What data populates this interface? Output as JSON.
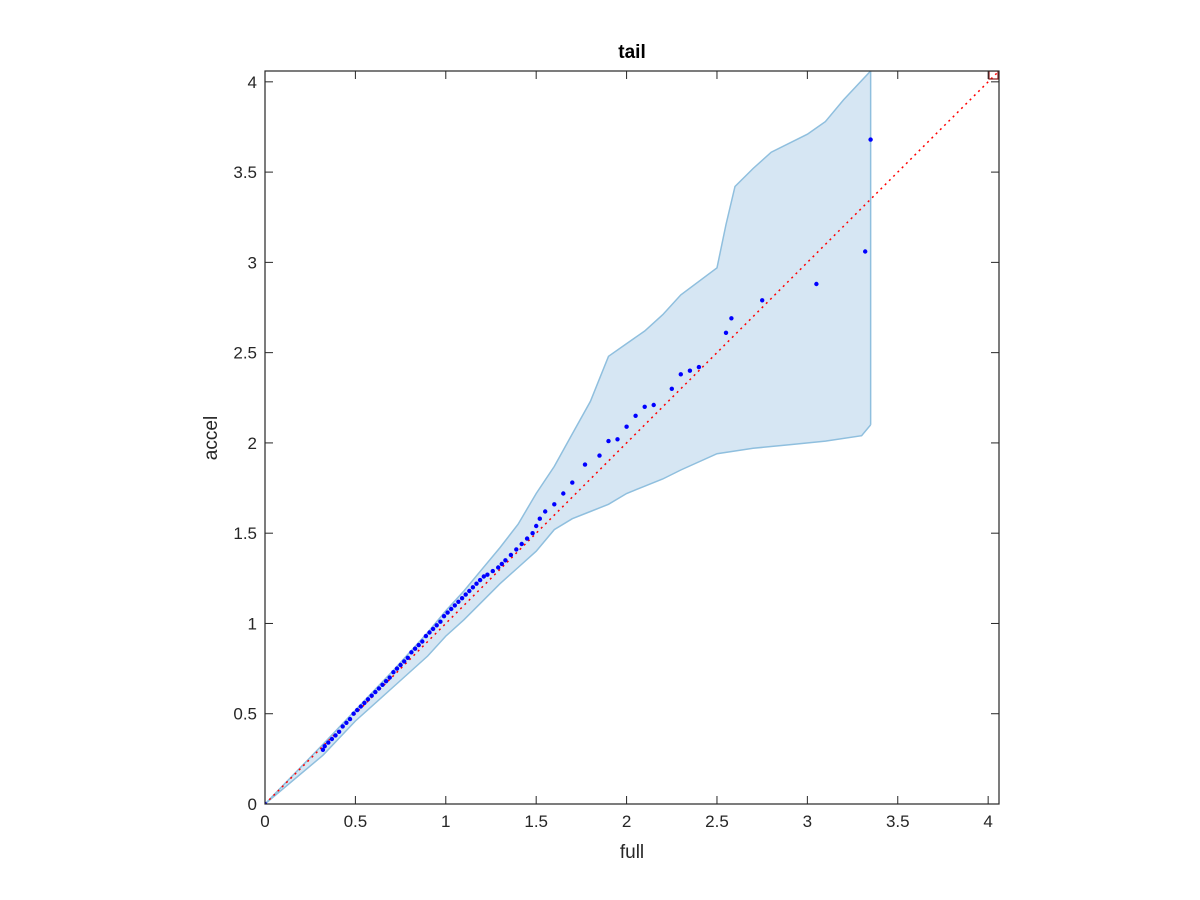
{
  "chart_data": {
    "type": "scatter",
    "title": "tail",
    "xlabel": "full",
    "ylabel": "accel",
    "xlim": [
      0,
      4.06
    ],
    "ylim": [
      0,
      4.06
    ],
    "xticks": [
      0,
      0.5,
      1,
      1.5,
      2,
      2.5,
      3,
      3.5,
      4
    ],
    "yticks": [
      0,
      0.5,
      1,
      1.5,
      2,
      2.5,
      3,
      3.5,
      4
    ],
    "xtick_labels": [
      "0",
      "0.5",
      "1",
      "1.5",
      "2",
      "2.5",
      "3",
      "3.5",
      "4"
    ],
    "ytick_labels": [
      "0",
      "0.5",
      "1",
      "1.5",
      "2",
      "2.5",
      "3",
      "3.5",
      "4"
    ],
    "grid": false,
    "reference_line": {
      "style": "dotted",
      "color": "#ff0000",
      "x": [
        0,
        4.06
      ],
      "y": [
        0,
        4.06
      ]
    },
    "band": {
      "color": "#d6e6f3",
      "edge_color": "#8fbfde",
      "upper": [
        [
          0,
          0
        ],
        [
          0.32,
          0.33
        ],
        [
          0.5,
          0.52
        ],
        [
          0.7,
          0.73
        ],
        [
          0.9,
          0.95
        ],
        [
          1.0,
          1.07
        ],
        [
          1.1,
          1.18
        ],
        [
          1.2,
          1.3
        ],
        [
          1.3,
          1.42
        ],
        [
          1.4,
          1.55
        ],
        [
          1.5,
          1.72
        ],
        [
          1.6,
          1.87
        ],
        [
          1.7,
          2.05
        ],
        [
          1.8,
          2.23
        ],
        [
          1.9,
          2.48
        ],
        [
          2.0,
          2.55
        ],
        [
          2.1,
          2.62
        ],
        [
          2.2,
          2.71
        ],
        [
          2.3,
          2.82
        ],
        [
          2.5,
          2.97
        ],
        [
          2.55,
          3.21
        ],
        [
          2.6,
          3.42
        ],
        [
          2.7,
          3.52
        ],
        [
          2.8,
          3.61
        ],
        [
          3.0,
          3.71
        ],
        [
          3.1,
          3.78
        ],
        [
          3.2,
          3.9
        ],
        [
          3.35,
          4.06
        ]
      ],
      "lower": [
        [
          0,
          0
        ],
        [
          0.32,
          0.27
        ],
        [
          0.5,
          0.46
        ],
        [
          0.7,
          0.64
        ],
        [
          0.9,
          0.82
        ],
        [
          1.0,
          0.93
        ],
        [
          1.1,
          1.02
        ],
        [
          1.2,
          1.12
        ],
        [
          1.3,
          1.22
        ],
        [
          1.4,
          1.31
        ],
        [
          1.5,
          1.4
        ],
        [
          1.6,
          1.52
        ],
        [
          1.7,
          1.58
        ],
        [
          1.8,
          1.62
        ],
        [
          1.9,
          1.66
        ],
        [
          2.0,
          1.72
        ],
        [
          2.1,
          1.76
        ],
        [
          2.2,
          1.8
        ],
        [
          2.3,
          1.85
        ],
        [
          2.5,
          1.94
        ],
        [
          2.7,
          1.97
        ],
        [
          2.9,
          1.99
        ],
        [
          3.1,
          2.01
        ],
        [
          3.3,
          2.04
        ],
        [
          3.35,
          2.1
        ]
      ]
    },
    "series": [
      {
        "color": "#0000ff",
        "x": [
          0,
          0.32,
          0.33,
          0.35,
          0.37,
          0.39,
          0.41,
          0.43,
          0.45,
          0.47,
          0.49,
          0.51,
          0.53,
          0.55,
          0.57,
          0.59,
          0.61,
          0.63,
          0.65,
          0.67,
          0.69,
          0.71,
          0.73,
          0.75,
          0.77,
          0.79,
          0.81,
          0.83,
          0.85,
          0.87,
          0.89,
          0.91,
          0.93,
          0.95,
          0.97,
          0.99,
          1.01,
          1.03,
          1.05,
          1.07,
          1.09,
          1.11,
          1.13,
          1.15,
          1.17,
          1.19,
          1.21,
          1.23,
          1.26,
          1.29,
          1.31,
          1.33,
          1.36,
          1.39,
          1.42,
          1.45,
          1.48,
          1.5,
          1.52,
          1.55,
          1.6,
          1.65,
          1.7,
          1.77,
          1.85,
          1.9,
          1.95,
          2.0,
          2.05,
          2.1,
          2.15,
          2.25,
          2.3,
          2.35,
          2.4,
          2.55,
          2.58,
          2.75,
          3.05,
          3.32,
          3.35
        ],
        "y": [
          0,
          0.3,
          0.32,
          0.34,
          0.36,
          0.38,
          0.4,
          0.43,
          0.45,
          0.47,
          0.5,
          0.52,
          0.54,
          0.56,
          0.58,
          0.6,
          0.62,
          0.64,
          0.66,
          0.68,
          0.7,
          0.73,
          0.75,
          0.77,
          0.79,
          0.81,
          0.84,
          0.86,
          0.88,
          0.9,
          0.93,
          0.95,
          0.97,
          0.99,
          1.01,
          1.04,
          1.06,
          1.08,
          1.1,
          1.12,
          1.14,
          1.16,
          1.18,
          1.2,
          1.22,
          1.24,
          1.26,
          1.27,
          1.29,
          1.31,
          1.33,
          1.35,
          1.38,
          1.41,
          1.44,
          1.47,
          1.5,
          1.54,
          1.58,
          1.62,
          1.66,
          1.72,
          1.78,
          1.88,
          1.93,
          2.01,
          2.02,
          2.09,
          2.15,
          2.2,
          2.21,
          2.3,
          2.38,
          2.4,
          2.42,
          2.61,
          2.69,
          2.79,
          2.88,
          3.06,
          3.68
        ]
      }
    ]
  },
  "corner_marker": {
    "color": "#8b1c1c"
  }
}
